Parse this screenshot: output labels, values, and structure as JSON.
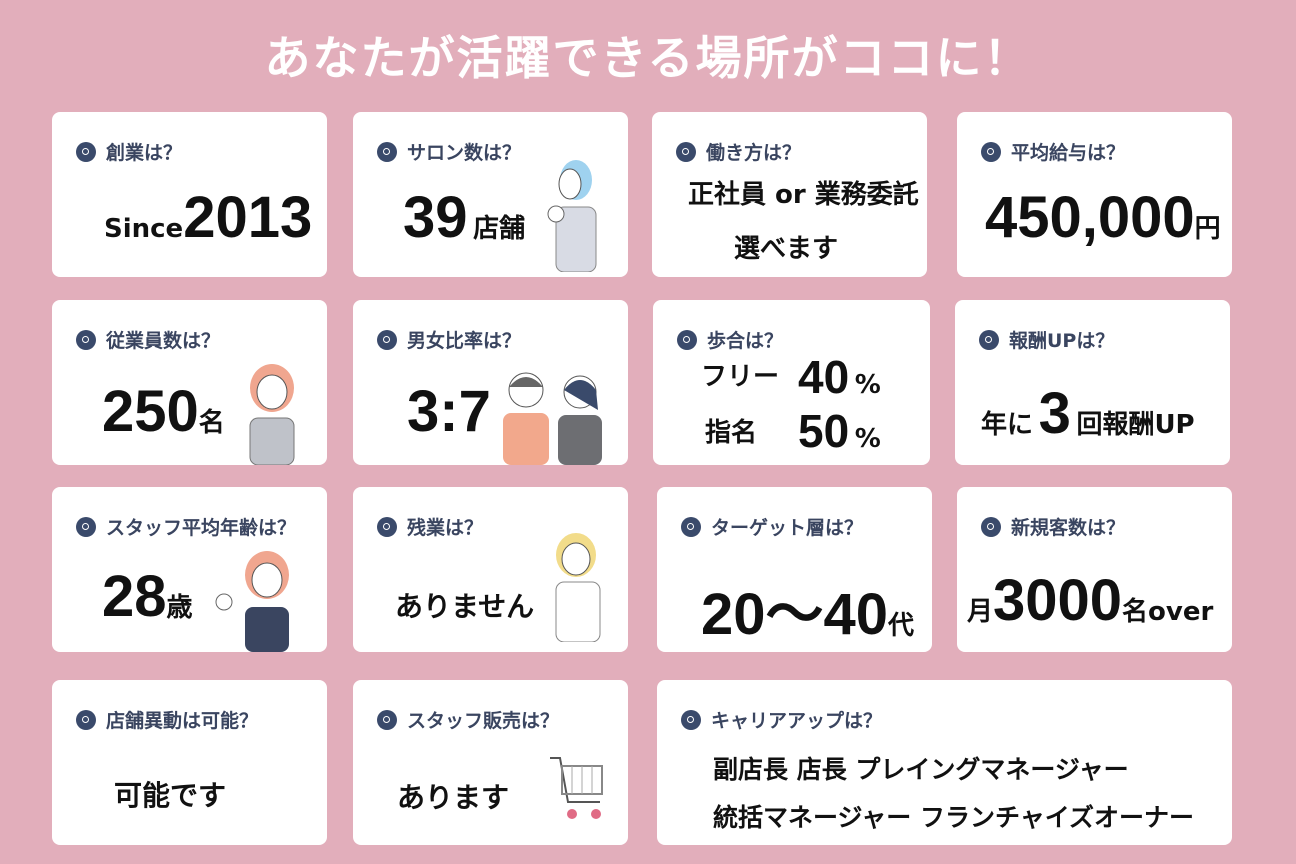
{
  "title": "あなたが活躍できる場所がココに！",
  "colors": {
    "background": "#e2aebb",
    "card": "#ffffff",
    "q_icon": "#3a4a6b"
  },
  "cards": [
    {
      "q": "創業は？",
      "prefix": "Since",
      "value": "2013"
    },
    {
      "q": "サロン数は？",
      "value": "39",
      "unit": "店舗"
    },
    {
      "q": "働き方は？",
      "line1": "正社員 or 業務委託",
      "line2": "選べます"
    },
    {
      "q": "平均給与は？",
      "value": "450,000",
      "unit": "円"
    },
    {
      "q": "従業員数は？",
      "value": "250",
      "unit": "名"
    },
    {
      "q": "男女比率は？",
      "value": "3:7"
    },
    {
      "q": "歩合は？",
      "row1_label": "フリー",
      "row1_value": "40",
      "row1_unit": "%",
      "row2_label": "指名",
      "row2_value": "50",
      "row2_unit": "%"
    },
    {
      "q": "報酬UPは？",
      "prefix": "年に",
      "value": "3",
      "unit": "回報酬UP"
    },
    {
      "q": "スタッフ平均年齢は？",
      "value": "28",
      "unit": "歳"
    },
    {
      "q": "残業は？",
      "text": "ありません"
    },
    {
      "q": "ターゲット層は？",
      "value": "20～40",
      "unit": "代"
    },
    {
      "q": "新規客数は？",
      "prefix": "月",
      "value": "3000",
      "unit": "名over"
    },
    {
      "q": "店舗異動は可能？",
      "text": "可能です"
    },
    {
      "q": "スタッフ販売は？",
      "text": "あります"
    },
    {
      "q": "キャリアアップは？",
      "line1": "副店長 店長 プレイングマネージャー",
      "line2": "統括マネージャー フランチャイズオーナー"
    }
  ]
}
